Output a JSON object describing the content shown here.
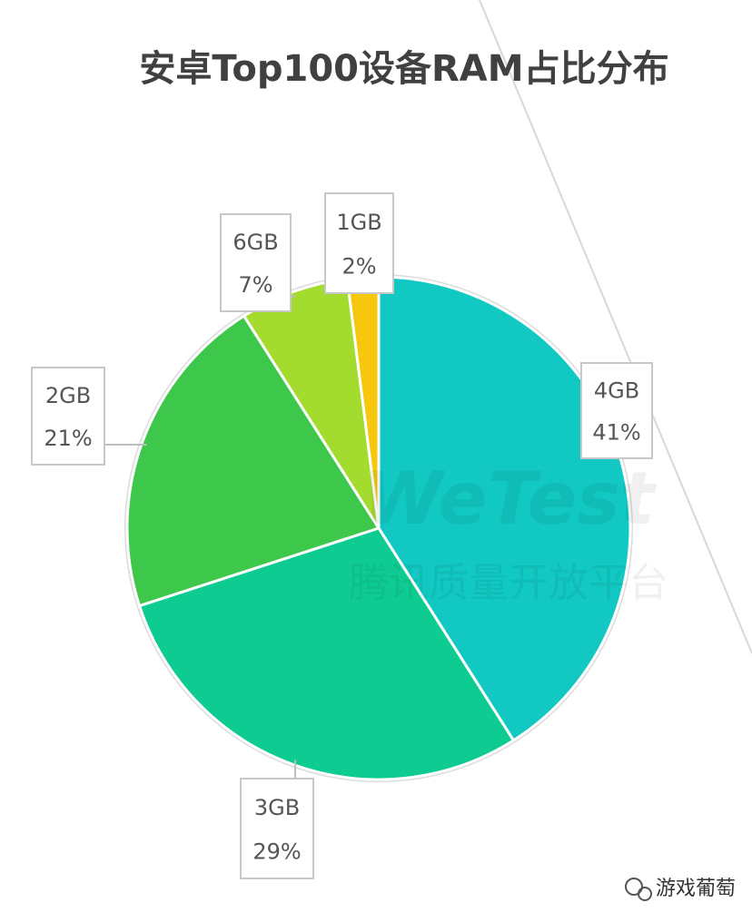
{
  "chart_data": {
    "type": "pie",
    "title": "安卓Top100设备RAM占比分布",
    "categories": [
      "4GB",
      "3GB",
      "2GB",
      "6GB",
      "1GB"
    ],
    "values": [
      41,
      29,
      21,
      7,
      2
    ],
    "value_labels": [
      "41%",
      "29%",
      "21%",
      "7%",
      "2%"
    ],
    "colors": [
      "#12c8c2",
      "#0ecb92",
      "#3dc84b",
      "#a3dc2f",
      "#f6c70c"
    ],
    "start_angle": -90,
    "direction": "clockwise"
  },
  "watermark": {
    "brand": "WeTest",
    "subtitle": "腾讯质量开放平台"
  },
  "source": "游戏葡萄"
}
